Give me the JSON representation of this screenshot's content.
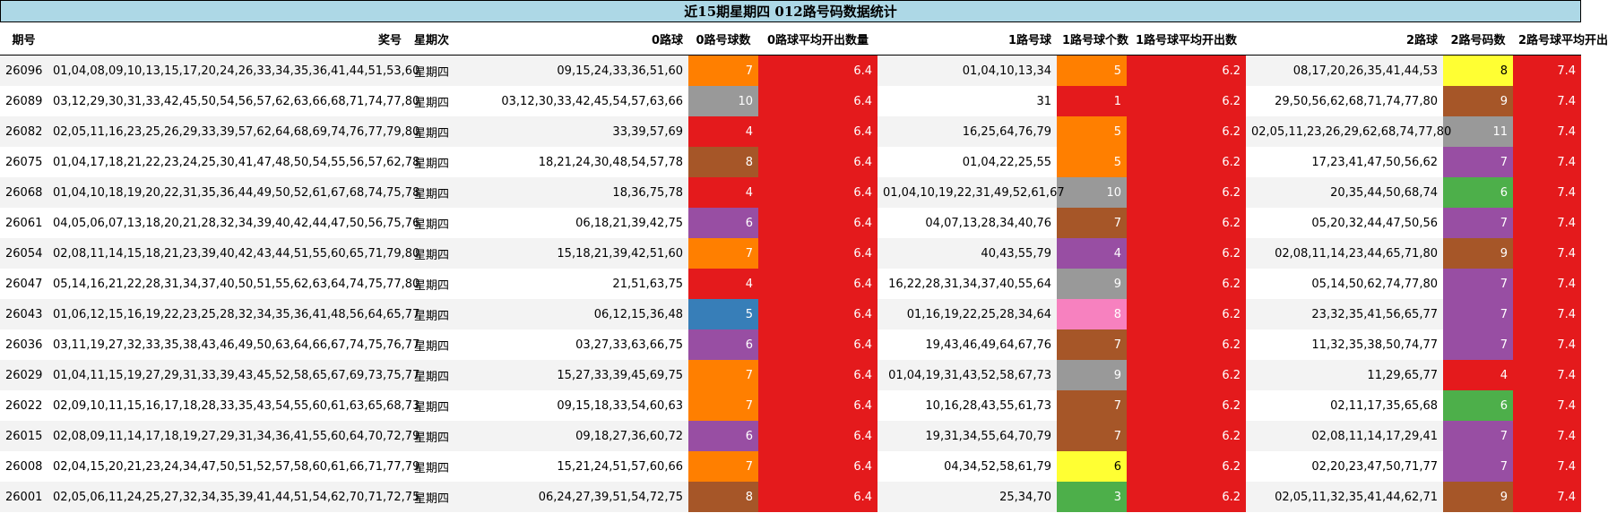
{
  "title": "近15期星期四 012路号码数据统计",
  "headers": [
    "期号",
    "奖号",
    "星期次",
    "0路球",
    "0路号球数",
    "0路球平均开出数量",
    "1路号球",
    "1路号球个数",
    "1路号球平均开出数",
    "2路球",
    "2路号码数",
    "2路号球平均开出"
  ],
  "colors": {
    "red": "#e41a1c",
    "orange": "#ff7f00",
    "gray": "#999999",
    "brown": "#a65628",
    "purple": "#984ea3",
    "blue": "#377eb8",
    "green": "#4daf4a",
    "pink": "#f781bf",
    "yellow": "#ffff33"
  },
  "rows": [
    {
      "issue": "26096",
      "numbers": "01,04,08,09,10,13,15,17,20,24,26,33,34,35,36,41,44,51,53,60",
      "weekday": "星期四",
      "r0": "09,15,24,33,36,51,60",
      "c0": "7",
      "c0_color": "orange",
      "a0": "6.4",
      "r1": "01,04,10,13,34",
      "c1": "5",
      "c1_color": "orange",
      "a1": "6.2",
      "r2": "08,17,20,26,35,41,44,53",
      "c2": "8",
      "c2_color": "yellow",
      "a2": "7.4"
    },
    {
      "issue": "26089",
      "numbers": "03,12,29,30,31,33,42,45,50,54,56,57,62,63,66,68,71,74,77,80",
      "weekday": "星期四",
      "r0": "03,12,30,33,42,45,54,57,63,66",
      "c0": "10",
      "c0_color": "gray",
      "a0": "6.4",
      "r1": "31",
      "c1": "1",
      "c1_color": "red",
      "a1": "6.2",
      "r2": "29,50,56,62,68,71,74,77,80",
      "c2": "9",
      "c2_color": "brown",
      "a2": "7.4"
    },
    {
      "issue": "26082",
      "numbers": "02,05,11,16,23,25,26,29,33,39,57,62,64,68,69,74,76,77,79,80",
      "weekday": "星期四",
      "r0": "33,39,57,69",
      "c0": "4",
      "c0_color": "red",
      "a0": "6.4",
      "r1": "16,25,64,76,79",
      "c1": "5",
      "c1_color": "orange",
      "a1": "6.2",
      "r2": "02,05,11,23,26,29,62,68,74,77,80",
      "c2": "11",
      "c2_color": "gray",
      "a2": "7.4"
    },
    {
      "issue": "26075",
      "numbers": "01,04,17,18,21,22,23,24,25,30,41,47,48,50,54,55,56,57,62,78",
      "weekday": "星期四",
      "r0": "18,21,24,30,48,54,57,78",
      "c0": "8",
      "c0_color": "brown",
      "a0": "6.4",
      "r1": "01,04,22,25,55",
      "c1": "5",
      "c1_color": "orange",
      "a1": "6.2",
      "r2": "17,23,41,47,50,56,62",
      "c2": "7",
      "c2_color": "purple",
      "a2": "7.4"
    },
    {
      "issue": "26068",
      "numbers": "01,04,10,18,19,20,22,31,35,36,44,49,50,52,61,67,68,74,75,78",
      "weekday": "星期四",
      "r0": "18,36,75,78",
      "c0": "4",
      "c0_color": "red",
      "a0": "6.4",
      "r1": "01,04,10,19,22,31,49,52,61,67",
      "c1": "10",
      "c1_color": "gray",
      "a1": "6.2",
      "r2": "20,35,44,50,68,74",
      "c2": "6",
      "c2_color": "green",
      "a2": "7.4"
    },
    {
      "issue": "26061",
      "numbers": "04,05,06,07,13,18,20,21,28,32,34,39,40,42,44,47,50,56,75,76",
      "weekday": "星期四",
      "r0": "06,18,21,39,42,75",
      "c0": "6",
      "c0_color": "purple",
      "a0": "6.4",
      "r1": "04,07,13,28,34,40,76",
      "c1": "7",
      "c1_color": "brown",
      "a1": "6.2",
      "r2": "05,20,32,44,47,50,56",
      "c2": "7",
      "c2_color": "purple",
      "a2": "7.4"
    },
    {
      "issue": "26054",
      "numbers": "02,08,11,14,15,18,21,23,39,40,42,43,44,51,55,60,65,71,79,80",
      "weekday": "星期四",
      "r0": "15,18,21,39,42,51,60",
      "c0": "7",
      "c0_color": "orange",
      "a0": "6.4",
      "r1": "40,43,55,79",
      "c1": "4",
      "c1_color": "purple",
      "a1": "6.2",
      "r2": "02,08,11,14,23,44,65,71,80",
      "c2": "9",
      "c2_color": "brown",
      "a2": "7.4"
    },
    {
      "issue": "26047",
      "numbers": "05,14,16,21,22,28,31,34,37,40,50,51,55,62,63,64,74,75,77,80",
      "weekday": "星期四",
      "r0": "21,51,63,75",
      "c0": "4",
      "c0_color": "red",
      "a0": "6.4",
      "r1": "16,22,28,31,34,37,40,55,64",
      "c1": "9",
      "c1_color": "gray",
      "a1": "6.2",
      "r2": "05,14,50,62,74,77,80",
      "c2": "7",
      "c2_color": "purple",
      "a2": "7.4"
    },
    {
      "issue": "26043",
      "numbers": "01,06,12,15,16,19,22,23,25,28,32,34,35,36,41,48,56,64,65,77",
      "weekday": "星期四",
      "r0": "06,12,15,36,48",
      "c0": "5",
      "c0_color": "blue",
      "a0": "6.4",
      "r1": "01,16,19,22,25,28,34,64",
      "c1": "8",
      "c1_color": "pink",
      "a1": "6.2",
      "r2": "23,32,35,41,56,65,77",
      "c2": "7",
      "c2_color": "purple",
      "a2": "7.4"
    },
    {
      "issue": "26036",
      "numbers": "03,11,19,27,32,33,35,38,43,46,49,50,63,64,66,67,74,75,76,77",
      "weekday": "星期四",
      "r0": "03,27,33,63,66,75",
      "c0": "6",
      "c0_color": "purple",
      "a0": "6.4",
      "r1": "19,43,46,49,64,67,76",
      "c1": "7",
      "c1_color": "brown",
      "a1": "6.2",
      "r2": "11,32,35,38,50,74,77",
      "c2": "7",
      "c2_color": "purple",
      "a2": "7.4"
    },
    {
      "issue": "26029",
      "numbers": "01,04,11,15,19,27,29,31,33,39,43,45,52,58,65,67,69,73,75,77",
      "weekday": "星期四",
      "r0": "15,27,33,39,45,69,75",
      "c0": "7",
      "c0_color": "orange",
      "a0": "6.4",
      "r1": "01,04,19,31,43,52,58,67,73",
      "c1": "9",
      "c1_color": "gray",
      "a1": "6.2",
      "r2": "11,29,65,77",
      "c2": "4",
      "c2_color": "red",
      "a2": "7.4"
    },
    {
      "issue": "26022",
      "numbers": "02,09,10,11,15,16,17,18,28,33,35,43,54,55,60,61,63,65,68,73",
      "weekday": "星期四",
      "r0": "09,15,18,33,54,60,63",
      "c0": "7",
      "c0_color": "orange",
      "a0": "6.4",
      "r1": "10,16,28,43,55,61,73",
      "c1": "7",
      "c1_color": "brown",
      "a1": "6.2",
      "r2": "02,11,17,35,65,68",
      "c2": "6",
      "c2_color": "green",
      "a2": "7.4"
    },
    {
      "issue": "26015",
      "numbers": "02,08,09,11,14,17,18,19,27,29,31,34,36,41,55,60,64,70,72,79",
      "weekday": "星期四",
      "r0": "09,18,27,36,60,72",
      "c0": "6",
      "c0_color": "purple",
      "a0": "6.4",
      "r1": "19,31,34,55,64,70,79",
      "c1": "7",
      "c1_color": "brown",
      "a1": "6.2",
      "r2": "02,08,11,14,17,29,41",
      "c2": "7",
      "c2_color": "purple",
      "a2": "7.4"
    },
    {
      "issue": "26008",
      "numbers": "02,04,15,20,21,23,24,34,47,50,51,52,57,58,60,61,66,71,77,79",
      "weekday": "星期四",
      "r0": "15,21,24,51,57,60,66",
      "c0": "7",
      "c0_color": "orange",
      "a0": "6.4",
      "r1": "04,34,52,58,61,79",
      "c1": "6",
      "c1_color": "yellow",
      "a1": "6.2",
      "r2": "02,20,23,47,50,71,77",
      "c2": "7",
      "c2_color": "purple",
      "a2": "7.4"
    },
    {
      "issue": "26001",
      "numbers": "02,05,06,11,24,25,27,32,34,35,39,41,44,51,54,62,70,71,72,75",
      "weekday": "星期四",
      "r0": "06,24,27,39,51,54,72,75",
      "c0": "8",
      "c0_color": "brown",
      "a0": "6.4",
      "r1": "25,34,70",
      "c1": "3",
      "c1_color": "green",
      "a1": "6.2",
      "r2": "02,05,11,32,35,41,44,62,71",
      "c2": "9",
      "c2_color": "brown",
      "a2": "7.4"
    }
  ]
}
